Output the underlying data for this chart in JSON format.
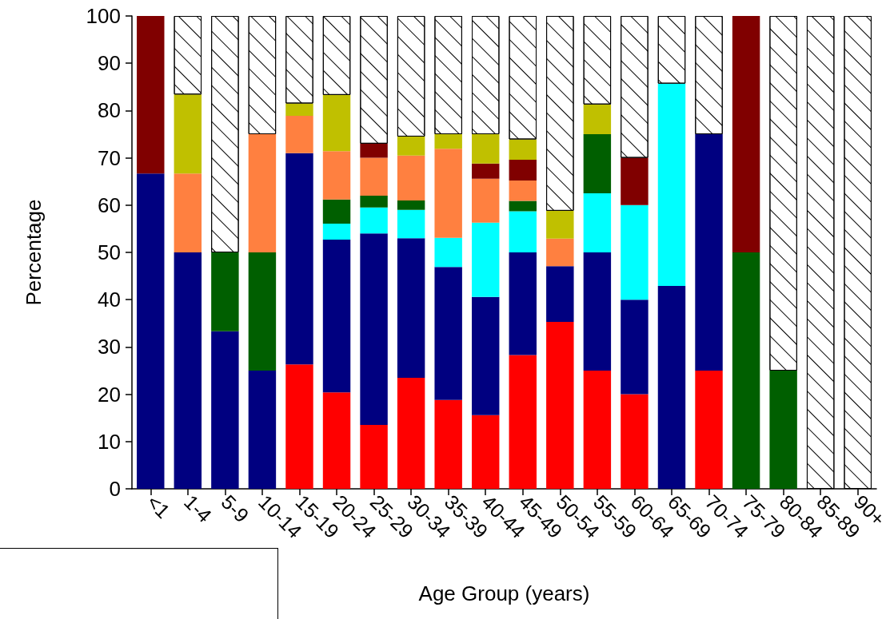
{
  "chart_data": {
    "type": "bar",
    "stacked": true,
    "xlabel": "Age Group (years)",
    "ylabel": "Percentage",
    "categories": [
      "<1",
      "1-4",
      "5-9",
      "10-14",
      "15-19",
      "20-24",
      "25-29",
      "30-34",
      "35-39",
      "40-44",
      "45-49",
      "50-54",
      "55-59",
      "60-64",
      "65-69",
      "70-74",
      "75-79",
      "80-84",
      "85-89",
      "90+"
    ],
    "series": [
      {
        "color": "#ff0000",
        "values": [
          null,
          null,
          null,
          null,
          26.3,
          20.4,
          13.5,
          23.5,
          18.8,
          15.6,
          28.3,
          35.3,
          25,
          20,
          null,
          25,
          null,
          null,
          null,
          null
        ]
      },
      {
        "color": "#000080",
        "values": [
          66.7,
          50,
          33.3,
          25,
          44.7,
          32.3,
          40.5,
          29.5,
          28.1,
          25,
          21.7,
          11.8,
          25,
          20,
          42.9,
          50,
          null,
          null,
          null,
          null
        ]
      },
      {
        "color": "#00ffff",
        "values": [
          null,
          null,
          null,
          null,
          null,
          3.4,
          5.5,
          6,
          6.2,
          15.7,
          8.7,
          null,
          12.5,
          20,
          42.8,
          null,
          null,
          null,
          null,
          null
        ]
      },
      {
        "color": "#005f00",
        "values": [
          null,
          null,
          16.7,
          25,
          null,
          5.1,
          2.5,
          2,
          null,
          null,
          2.2,
          null,
          12.5,
          null,
          null,
          null,
          50,
          25,
          null,
          null
        ]
      },
      {
        "color": "#ff8040",
        "values": [
          null,
          16.7,
          null,
          25,
          7.9,
          10.2,
          8,
          9.5,
          18.8,
          9.3,
          4.3,
          5.8,
          null,
          null,
          null,
          null,
          null,
          null,
          null,
          null
        ]
      },
      {
        "color": "#800000",
        "values": [
          33.3,
          null,
          null,
          null,
          null,
          null,
          3,
          null,
          null,
          3.2,
          4.4,
          null,
          null,
          10,
          null,
          null,
          50,
          null,
          null,
          null
        ]
      },
      {
        "color": "#c0c000",
        "values": [
          null,
          16.7,
          null,
          null,
          2.6,
          11.9,
          null,
          4,
          3.1,
          6.2,
          4.3,
          5.9,
          6.3,
          null,
          null,
          null,
          null,
          null,
          null,
          null
        ]
      },
      {
        "color": "#ffffff",
        "values": [
          null,
          16.6,
          50,
          25,
          18.5,
          16.7,
          27,
          25.5,
          25,
          25,
          26.1,
          41.2,
          18.7,
          30,
          14.3,
          25,
          null,
          75,
          100,
          100
        ]
      }
    ],
    "ylim": [
      0,
      100
    ],
    "yticks": [
      0,
      10,
      20,
      30,
      40,
      50,
      60,
      70,
      80,
      90,
      100
    ],
    "grid": false
  }
}
